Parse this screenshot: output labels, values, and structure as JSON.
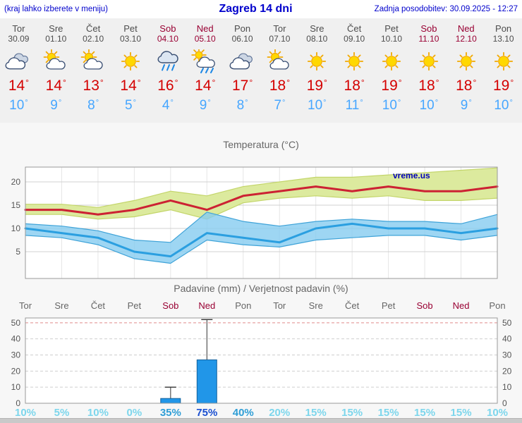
{
  "header": {
    "menu_note": "(kraj lahko izberete v meniju)",
    "title": "Zagreb 14 dni",
    "last_update": "Zadnja posodobitev: 30.09.2025 - 12:27"
  },
  "units": {
    "degree": "°",
    "percent": "%"
  },
  "watermark": "vreme.us",
  "colors": {
    "link_blue": "#0000cc",
    "weekday_text": "#4d4d4d",
    "weekend_text": "#990033",
    "tmax_text": "#d40000",
    "tmin_text": "#46a6ff",
    "tmax_line": "#cc2233",
    "tmax_band": "#dcea9e",
    "tmax_band_edge": "#c3d56a",
    "tmin_line": "#2b9fe0",
    "tmin_band": "#86ccf0",
    "tmin_band_edge": "#3fa3d8",
    "bar_fill": "#2196e8",
    "bar_edge": "#13619c",
    "prob_low": "#7cd6ec",
    "prob_mid": "#2f9ed6",
    "prob_high": "#1a4fd0",
    "grid": "#d0d0d0",
    "grid_red": "#e08a8a",
    "axis_text": "#555555"
  },
  "days": [
    {
      "name": "Tor",
      "date": "30.09",
      "weekend": false,
      "icon": "cloudy",
      "tmax": "14",
      "tmin": "10"
    },
    {
      "name": "Sre",
      "date": "01.10",
      "weekend": false,
      "icon": "partly",
      "tmax": "14",
      "tmin": "9"
    },
    {
      "name": "Čet",
      "date": "02.10",
      "weekend": false,
      "icon": "partly",
      "tmax": "13",
      "tmin": "8"
    },
    {
      "name": "Pet",
      "date": "03.10",
      "weekend": false,
      "icon": "sunny",
      "tmax": "14",
      "tmin": "5"
    },
    {
      "name": "Sob",
      "date": "04.10",
      "weekend": true,
      "icon": "rain",
      "tmax": "16",
      "tmin": "4"
    },
    {
      "name": "Ned",
      "date": "05.10",
      "weekend": true,
      "icon": "rain-sun",
      "tmax": "14",
      "tmin": "9"
    },
    {
      "name": "Pon",
      "date": "06.10",
      "weekend": false,
      "icon": "cloudy",
      "tmax": "17",
      "tmin": "8"
    },
    {
      "name": "Tor",
      "date": "07.10",
      "weekend": false,
      "icon": "partly",
      "tmax": "18",
      "tmin": "7"
    },
    {
      "name": "Sre",
      "date": "08.10",
      "weekend": false,
      "icon": "sunny",
      "tmax": "19",
      "tmin": "10"
    },
    {
      "name": "Čet",
      "date": "09.10",
      "weekend": false,
      "icon": "sunny",
      "tmax": "18",
      "tmin": "11"
    },
    {
      "name": "Pet",
      "date": "10.10",
      "weekend": false,
      "icon": "sunny",
      "tmax": "19",
      "tmin": "10"
    },
    {
      "name": "Sob",
      "date": "11.10",
      "weekend": true,
      "icon": "sunny",
      "tmax": "18",
      "tmin": "10"
    },
    {
      "name": "Ned",
      "date": "12.10",
      "weekend": true,
      "icon": "sunny",
      "tmax": "18",
      "tmin": "9"
    },
    {
      "name": "Pon",
      "date": "13.10",
      "weekend": false,
      "icon": "sunny",
      "tmax": "19",
      "tmin": "10"
    }
  ],
  "chart_data": [
    {
      "type": "line",
      "title": "Temperatura (°C)",
      "watermark": "vreme.us",
      "ylim": [
        -1,
        23.2
      ],
      "yticks": [
        5,
        10,
        15,
        20
      ],
      "grid": true,
      "legend": "none",
      "series": [
        {
          "name": "tmax",
          "color": "#cc2233",
          "values": [
            14,
            14,
            13,
            14,
            16,
            14,
            17,
            18,
            19,
            18,
            19,
            18,
            18,
            19
          ]
        },
        {
          "name": "tmax_band_upper",
          "color": "#c3d56a",
          "values": [
            15.2,
            15.2,
            14.5,
            16,
            18,
            17,
            19,
            20,
            21,
            21,
            21.5,
            22,
            22.5,
            23
          ]
        },
        {
          "name": "tmax_band_lower",
          "color": "#c3d56a",
          "values": [
            13,
            13,
            12,
            12.5,
            14,
            12,
            15.5,
            16.5,
            17,
            16.5,
            17,
            16,
            16,
            16.5
          ]
        },
        {
          "name": "tmin",
          "color": "#2b9fe0",
          "values": [
            10,
            9,
            8,
            5,
            4,
            9,
            8,
            7,
            10,
            11,
            10,
            10,
            9,
            10
          ]
        },
        {
          "name": "tmin_band_upper",
          "color": "#3fa3d8",
          "values": [
            11,
            10.5,
            9.5,
            7.5,
            7,
            13.5,
            11.5,
            10.5,
            11.5,
            12,
            11.5,
            11.5,
            11,
            13
          ]
        },
        {
          "name": "tmin_band_lower",
          "color": "#3fa3d8",
          "values": [
            8.5,
            8,
            6.5,
            3.5,
            2.5,
            7.5,
            6.5,
            6,
            7.5,
            8,
            8.5,
            8.5,
            7.5,
            8.5
          ]
        }
      ]
    },
    {
      "type": "bar",
      "title": "Padavine (mm) / Verjetnost padavin (%)",
      "categories": [
        "Tor",
        "Sre",
        "Čet",
        "Pet",
        "Sob",
        "Ned",
        "Pon",
        "Tor",
        "Sre",
        "Čet",
        "Pet",
        "Sob",
        "Ned",
        "Pon"
      ],
      "weekend": [
        false,
        false,
        false,
        false,
        true,
        true,
        false,
        false,
        false,
        false,
        false,
        true,
        true,
        false
      ],
      "precip_mm": [
        0,
        0,
        0,
        0,
        3,
        27,
        0,
        0,
        0,
        0,
        0,
        0,
        0,
        0
      ],
      "precip_max_mm": [
        0,
        0,
        0,
        0,
        10,
        52,
        0,
        0,
        0,
        0,
        0,
        0,
        0,
        0
      ],
      "probability_pct": [
        10,
        5,
        10,
        0,
        35,
        75,
        40,
        20,
        15,
        15,
        15,
        15,
        15,
        10
      ],
      "ylim": [
        0,
        53
      ],
      "yticks": [
        0,
        10,
        20,
        30,
        40,
        50
      ]
    }
  ]
}
